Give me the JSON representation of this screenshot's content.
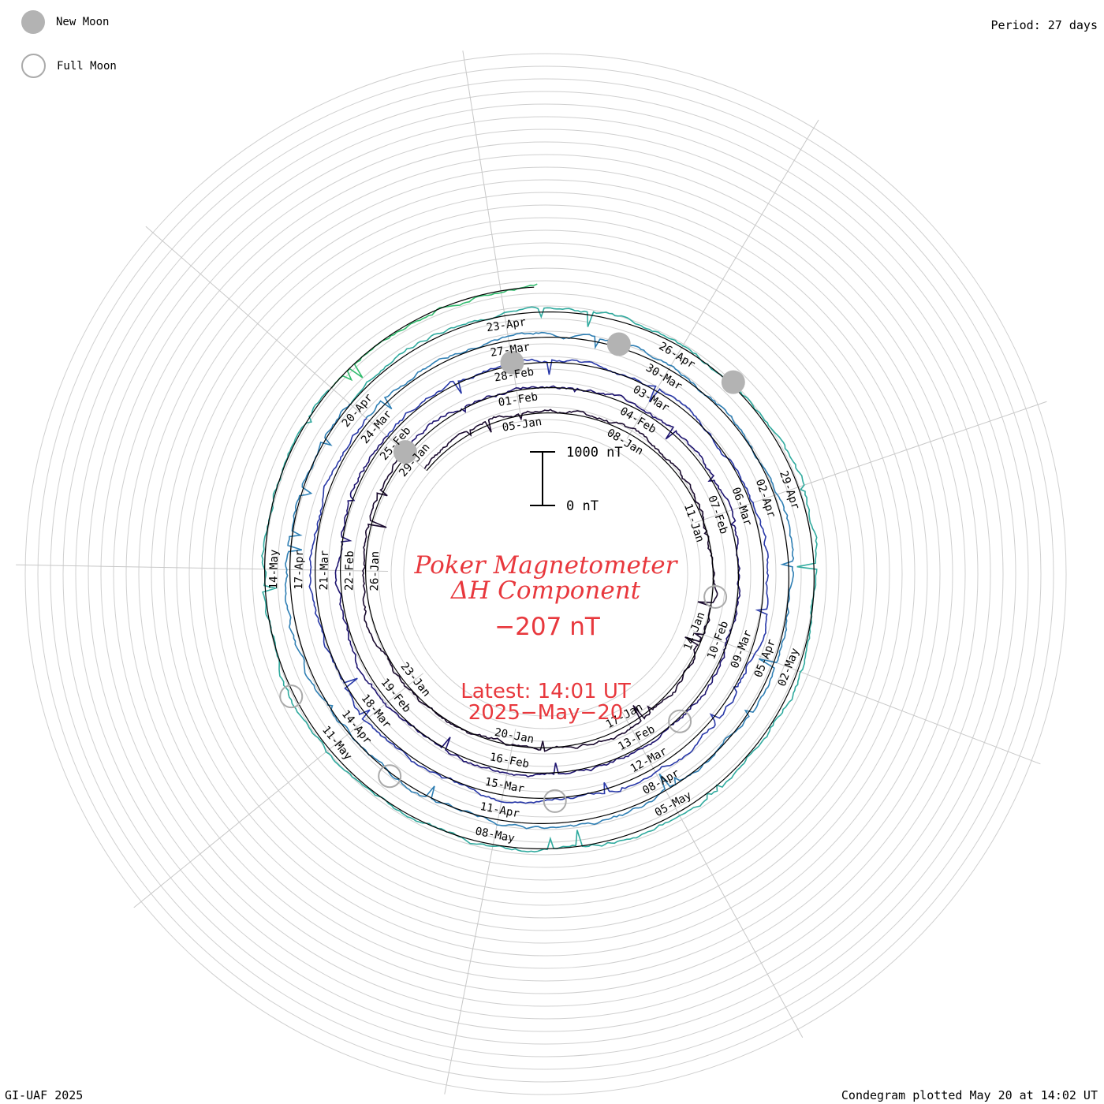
{
  "header": {
    "period_label": "Period: 27 days"
  },
  "legend": {
    "new_moon_label": "New Moon",
    "full_moon_label": "Full Moon",
    "new_moon_color": "#b3b3b3",
    "full_moon_color": "#aaaaaa"
  },
  "center": {
    "title_line1": "Poker Magnetometer",
    "title_line2": "ΔH Component",
    "current_value": "−207 nT",
    "latest_label": "Latest:  14:01 UT",
    "latest_date": "2025−May−20",
    "text_color": "#e8383d"
  },
  "scale_bar": {
    "top_label": "1000 nT",
    "bottom_label": "0  nT"
  },
  "footer": {
    "left": "GI-UAF 2025",
    "right": "Condegram plotted May 20 at 14:02 UT"
  },
  "chart_data": {
    "type": "line",
    "subtype": "condegram spiral",
    "period_days": 27,
    "start_date": "2025-01-02",
    "end_date": "2025-05-20",
    "series": [
      {
        "color": "#1a0a2e"
      },
      {
        "color": "#1e1470"
      },
      {
        "color": "#2838a8"
      },
      {
        "color": "#2f7fb4"
      },
      {
        "color": "#2faa9e"
      },
      {
        "color": "#32bc6e"
      },
      {
        "color": "#7cc43a"
      },
      {
        "color": "#b9b81e"
      },
      {
        "color": "#d4a428"
      },
      {
        "color": "#c25e16"
      },
      {
        "color": "#b8180f"
      }
    ],
    "date_ticks": [
      {
        "date": "2025-01-05",
        "label": "05-Jan"
      },
      {
        "date": "2025-01-08",
        "label": "08-Jan"
      },
      {
        "date": "2025-01-11",
        "label": "11-Jan"
      },
      {
        "date": "2025-01-14",
        "label": "14-Jan"
      },
      {
        "date": "2025-01-17",
        "label": "17-Jan"
      },
      {
        "date": "2025-01-20",
        "label": "20-Jan"
      },
      {
        "date": "2025-01-23",
        "label": "23-Jan"
      },
      {
        "date": "2025-01-26",
        "label": "26-Jan"
      },
      {
        "date": "2025-01-29",
        "label": "29-Jan"
      },
      {
        "date": "2025-02-01",
        "label": "01-Feb"
      },
      {
        "date": "2025-02-04",
        "label": "04-Feb"
      },
      {
        "date": "2025-02-07",
        "label": "07-Feb"
      },
      {
        "date": "2025-02-10",
        "label": "10-Feb"
      },
      {
        "date": "2025-02-13",
        "label": "13-Feb"
      },
      {
        "date": "2025-02-16",
        "label": "16-Feb"
      },
      {
        "date": "2025-02-19",
        "label": "19-Feb"
      },
      {
        "date": "2025-02-22",
        "label": "22-Feb"
      },
      {
        "date": "2025-02-25",
        "label": "25-Feb"
      },
      {
        "date": "2025-02-28",
        "label": "28-Feb"
      },
      {
        "date": "2025-03-03",
        "label": "03-Mar"
      },
      {
        "date": "2025-03-06",
        "label": "06-Mar"
      },
      {
        "date": "2025-03-09",
        "label": "09-Mar"
      },
      {
        "date": "2025-03-12",
        "label": "12-Mar"
      },
      {
        "date": "2025-03-15",
        "label": "15-Mar"
      },
      {
        "date": "2025-03-18",
        "label": "18-Mar"
      },
      {
        "date": "2025-03-21",
        "label": "21-Mar"
      },
      {
        "date": "2025-03-24",
        "label": "24-Mar"
      },
      {
        "date": "2025-03-27",
        "label": "27-Mar"
      },
      {
        "date": "2025-03-30",
        "label": "30-Mar"
      },
      {
        "date": "2025-04-02",
        "label": "02-Apr"
      },
      {
        "date": "2025-04-05",
        "label": "05-Apr"
      },
      {
        "date": "2025-04-08",
        "label": "08-Apr"
      },
      {
        "date": "2025-04-11",
        "label": "11-Apr"
      },
      {
        "date": "2025-04-14",
        "label": "14-Apr"
      },
      {
        "date": "2025-04-17",
        "label": "17-Apr"
      },
      {
        "date": "2025-04-20",
        "label": "20-Apr"
      },
      {
        "date": "2025-04-23",
        "label": "23-Apr"
      },
      {
        "date": "2025-04-26",
        "label": "26-Apr"
      },
      {
        "date": "2025-04-29",
        "label": "29-Apr"
      },
      {
        "date": "2025-05-02",
        "label": "02-May"
      },
      {
        "date": "2025-05-05",
        "label": "05-May"
      },
      {
        "date": "2025-05-08",
        "label": "08-May"
      },
      {
        "date": "2025-05-11",
        "label": "11-May"
      },
      {
        "date": "2025-05-14",
        "label": "14-May"
      }
    ],
    "new_moons": [
      "2025-01-29",
      "2025-02-28",
      "2025-03-29",
      "2025-04-27"
    ],
    "full_moons": [
      "2025-01-13",
      "2025-02-12",
      "2025-03-14",
      "2025-04-13",
      "2025-05-12"
    ],
    "y_unit": "nT",
    "y_scale": [
      0,
      1000
    ],
    "latest_value": -207
  }
}
